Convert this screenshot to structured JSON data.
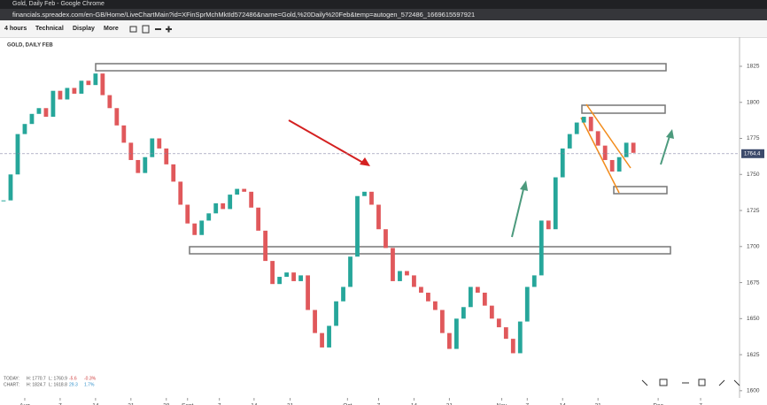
{
  "window_title": "Gold, Daily Feb - Google Chrome",
  "url": "financials.spreadex.com/en-GB/Home/LiveChartMain?id=XFinSprMchMktId572486&name=Gold,%20Daily%20Feb&temp=autogen_572486_1669615597921",
  "toolbar": [
    "4 hours",
    "Technical",
    "Display",
    "More"
  ],
  "chart_data": {
    "type": "candlestick",
    "title": "GOLD, DAILY FEB",
    "values": [
      1732,
      1750,
      1778,
      1785,
      1792,
      1796,
      1790,
      1808,
      1802,
      1810,
      1806,
      1815,
      1812,
      1820,
      1805,
      1796,
      1784,
      1772,
      1760,
      1751,
      1762,
      1775,
      1768,
      1757,
      1745,
      1729,
      1716,
      1708,
      1718,
      1723,
      1730,
      1726,
      1736,
      1740,
      1738,
      1727,
      1711,
      1690,
      1674,
      1679,
      1682,
      1676,
      1680,
      1656,
      1640,
      1630,
      1645,
      1662,
      1672,
      1693,
      1735,
      1738,
      1729,
      1712,
      1699,
      1676,
      1683,
      1680,
      1672,
      1668,
      1662,
      1656,
      1640,
      1629,
      1650,
      1658,
      1672,
      1668,
      1659,
      1650,
      1644,
      1636,
      1626,
      1648,
      1672,
      1680,
      1718,
      1712,
      1748,
      1768,
      1778,
      1786,
      1790,
      1780,
      1770,
      1760,
      1752,
      1762,
      1772,
      1765
    ],
    "up_color": "#26a69a",
    "down_color": "#e0585b",
    "ylim": [
      1595,
      1844
    ],
    "yticks": [
      1600,
      1625,
      1650,
      1675,
      1700,
      1725,
      1750,
      1775,
      1800,
      1825
    ],
    "xlim": [
      -0.5,
      104
    ],
    "xticks": [
      {
        "value": 3,
        "label": "Aug"
      },
      {
        "value": 8,
        "label": "7"
      },
      {
        "value": 13,
        "label": "14"
      },
      {
        "value": 18,
        "label": "21"
      },
      {
        "value": 23,
        "label": "28"
      },
      {
        "value": 26,
        "label": "Sept"
      },
      {
        "value": 30.5,
        "label": "7"
      },
      {
        "value": 35.4,
        "label": "14"
      },
      {
        "value": 40.5,
        "label": "21"
      },
      {
        "value": 48.6,
        "label": "Oct"
      },
      {
        "value": 53,
        "label": "7"
      },
      {
        "value": 58,
        "label": "14"
      },
      {
        "value": 63,
        "label": "21"
      },
      {
        "value": 70.4,
        "label": "Nov"
      },
      {
        "value": 74,
        "label": "7"
      },
      {
        "value": 79,
        "label": "14"
      },
      {
        "value": 84,
        "label": "21"
      },
      {
        "value": 92.5,
        "label": "Dec"
      },
      {
        "value": 98.5,
        "label": "7"
      }
    ],
    "last_price": 1764.4,
    "stats": [
      [
        "TODAY:",
        "H: 1770.7",
        "L: 1760.9",
        "-5.6",
        "-0.3%"
      ],
      [
        "CHART:",
        "H: 1824.7",
        "L: 1618.8",
        "29.3",
        "1.7%"
      ]
    ]
  }
}
